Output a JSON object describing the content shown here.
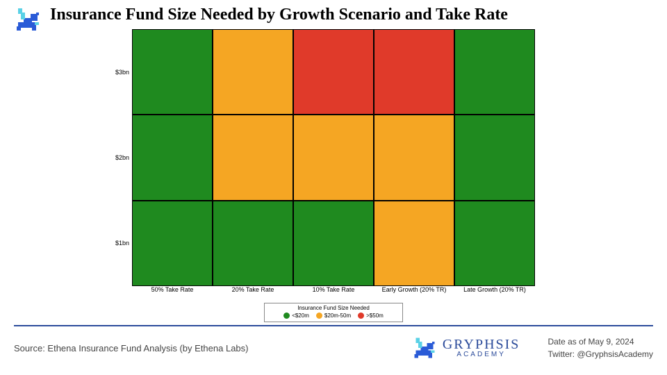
{
  "title": "Insurance Fund Size Needed by Growth Scenario and Take Rate",
  "chart": {
    "type": "heatmap",
    "x_categories": [
      "50% Take Rate",
      "20% Take Rate",
      "10% Take Rate",
      "Early Growth (20% TR)",
      "Late Growth (20% TR)"
    ],
    "y_categories": [
      "$3bn",
      "$2bn",
      "$1bn"
    ],
    "x_fontsize": 9,
    "y_fontsize": 9,
    "cell_border_color": "#000000",
    "background_color": "#ffffff",
    "cells": [
      [
        "green",
        "orange",
        "red",
        "red",
        "green"
      ],
      [
        "green",
        "orange",
        "orange",
        "orange",
        "green"
      ],
      [
        "green",
        "green",
        "green",
        "orange",
        "green"
      ]
    ],
    "colors": {
      "green": "#1f8a1f",
      "orange": "#f5a623",
      "red": "#e03a2a"
    }
  },
  "legend": {
    "title": "Insurance Fund Size Needed",
    "items": [
      {
        "color_key": "green",
        "label": "<$20m"
      },
      {
        "color_key": "orange",
        "label": "$20m-50m"
      },
      {
        "color_key": "red",
        "label": ">$50m"
      }
    ]
  },
  "footer": {
    "source": "Source: Ethena Insurance Fund Analysis (by Ethena Labs)",
    "brand_name": "GRYPHSIS",
    "brand_sub": "ACADEMY",
    "date": "Date as of May 9, 2024",
    "twitter": "Twitter: @GryphsisAcademy",
    "line_color": "#2a4a9a",
    "brand_color": "#2a4a9a"
  },
  "logo": {
    "primary": "#2a5bd7",
    "accent": "#5ad1e6"
  }
}
